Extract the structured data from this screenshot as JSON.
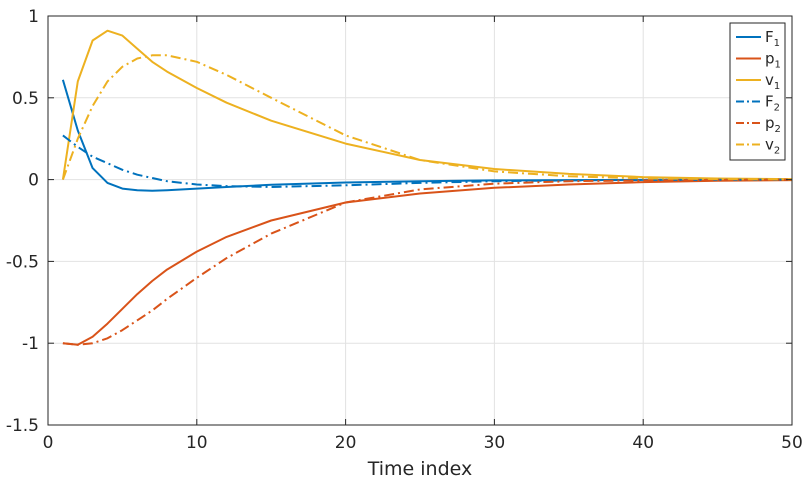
{
  "chart_data": {
    "type": "line",
    "title": "",
    "xlabel": "Time index",
    "ylabel": "",
    "xlim": [
      0,
      50
    ],
    "ylim": [
      -1.5,
      1
    ],
    "xticks": [
      0,
      10,
      20,
      30,
      40,
      50
    ],
    "xtick_labels": [
      "0",
      "10",
      "20",
      "30",
      "40",
      "50"
    ],
    "yticks": [
      -1.5,
      -1,
      -0.5,
      0,
      0.5,
      1
    ],
    "ytick_labels": [
      "-1.5",
      "-1",
      "-0.5",
      "0",
      "0.5",
      "1"
    ],
    "grid": true,
    "legend_position": "top-right",
    "series": [
      {
        "name": "F",
        "sub": "1",
        "color": "#0072BD",
        "style": "solid",
        "x": [
          1,
          2,
          3,
          4,
          5,
          6,
          7,
          8,
          10,
          12,
          15,
          20,
          25,
          30,
          35,
          40,
          45,
          50
        ],
        "y": [
          0.61,
          0.3,
          0.07,
          -0.02,
          -0.055,
          -0.065,
          -0.068,
          -0.065,
          -0.055,
          -0.045,
          -0.032,
          -0.018,
          -0.01,
          -0.005,
          -0.003,
          -0.002,
          -0.001,
          0
        ]
      },
      {
        "name": "p",
        "sub": "1",
        "color": "#D95319",
        "style": "solid",
        "x": [
          1,
          2,
          3,
          4,
          5,
          6,
          7,
          8,
          10,
          12,
          15,
          20,
          25,
          30,
          35,
          40,
          45,
          50
        ],
        "y": [
          -1.0,
          -1.01,
          -0.96,
          -0.88,
          -0.79,
          -0.7,
          -0.62,
          -0.55,
          -0.44,
          -0.35,
          -0.25,
          -0.14,
          -0.085,
          -0.05,
          -0.03,
          -0.015,
          -0.007,
          -0.003
        ]
      },
      {
        "name": "v",
        "sub": "1",
        "color": "#EDB120",
        "style": "solid",
        "x": [
          1,
          2,
          3,
          4,
          5,
          6,
          7,
          8,
          10,
          12,
          15,
          20,
          25,
          30,
          35,
          40,
          45,
          50
        ],
        "y": [
          0.0,
          0.6,
          0.85,
          0.91,
          0.88,
          0.8,
          0.72,
          0.66,
          0.56,
          0.47,
          0.36,
          0.22,
          0.12,
          0.065,
          0.035,
          0.015,
          0.007,
          0.003
        ]
      },
      {
        "name": "F",
        "sub": "2",
        "color": "#0072BD",
        "style": "dashdot",
        "x": [
          1,
          2,
          3,
          4,
          5,
          6,
          7,
          8,
          10,
          12,
          15,
          20,
          25,
          30,
          35,
          40,
          45,
          50
        ],
        "y": [
          0.27,
          0.2,
          0.14,
          0.1,
          0.06,
          0.03,
          0.01,
          -0.01,
          -0.03,
          -0.04,
          -0.045,
          -0.035,
          -0.02,
          -0.01,
          -0.005,
          -0.002,
          -0.001,
          0
        ]
      },
      {
        "name": "p",
        "sub": "2",
        "color": "#D95319",
        "style": "dashdot",
        "x": [
          1,
          2,
          3,
          4,
          5,
          6,
          7,
          8,
          10,
          12,
          15,
          20,
          25,
          30,
          35,
          40,
          45,
          50
        ],
        "y": [
          -1.0,
          -1.01,
          -1.0,
          -0.97,
          -0.92,
          -0.86,
          -0.8,
          -0.73,
          -0.6,
          -0.48,
          -0.33,
          -0.14,
          -0.06,
          -0.025,
          -0.01,
          -0.005,
          -0.002,
          0
        ]
      },
      {
        "name": "v",
        "sub": "2",
        "color": "#EDB120",
        "style": "dashdot",
        "x": [
          1,
          2,
          3,
          4,
          5,
          6,
          7,
          8,
          10,
          12,
          15,
          20,
          25,
          30,
          35,
          40,
          45,
          50
        ],
        "y": [
          0.0,
          0.25,
          0.45,
          0.6,
          0.69,
          0.74,
          0.76,
          0.76,
          0.72,
          0.64,
          0.5,
          0.27,
          0.12,
          0.05,
          0.02,
          0.008,
          0.003,
          0.001
        ]
      }
    ]
  }
}
